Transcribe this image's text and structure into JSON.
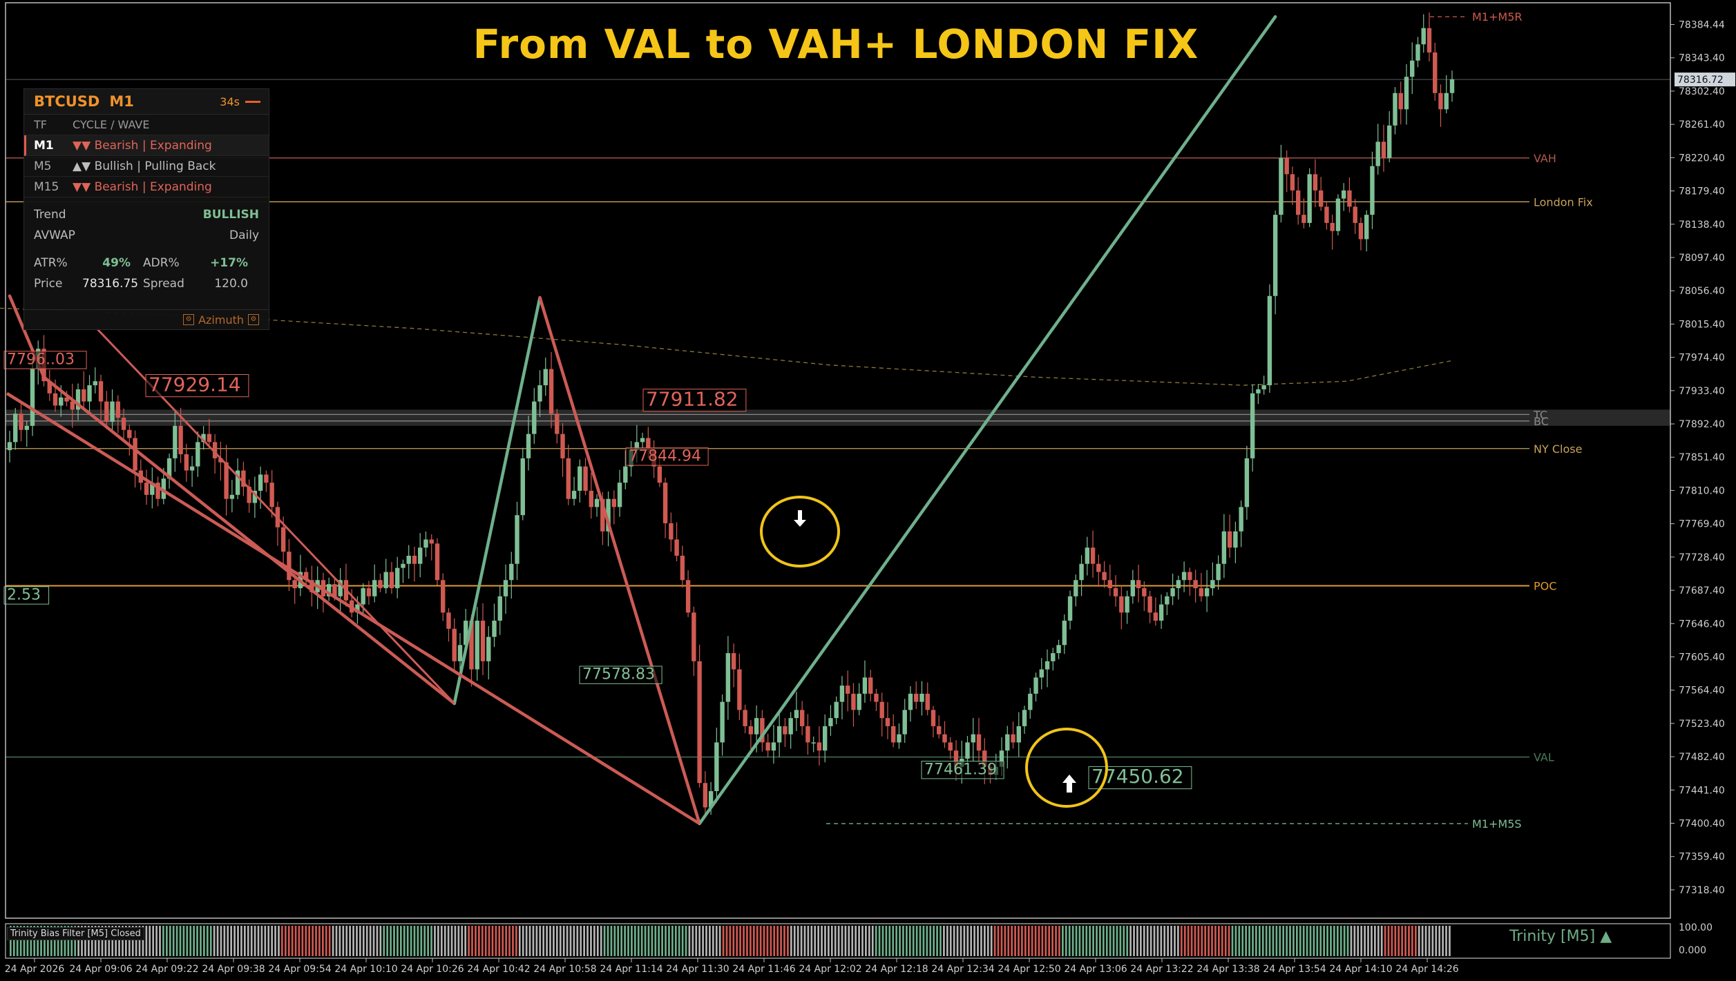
{
  "title": "From VAL to VAH+ LONDON FIX",
  "panel": {
    "symbol": "BTCUSD",
    "timeframe": "M1",
    "timer": "34s",
    "col_tf": "TF",
    "col_cycle": "CYCLE / WAVE",
    "rows": [
      {
        "tf": "M1",
        "arrows": "▼▼",
        "text": "Bearish | Expanding",
        "color": "#e0645a"
      },
      {
        "tf": "M5",
        "arrows": "▲▼",
        "text": "Bullish | Pulling Back",
        "color": "#bdbdbd"
      },
      {
        "tf": "M15",
        "arrows": "▼▼",
        "text": "Bearish | Expanding",
        "color": "#e0645a"
      }
    ],
    "trend_label": "Trend",
    "trend_value": "BULLISH",
    "avwap_label": "AVWAP",
    "avwap_value": "Daily",
    "atr_label": "ATR%",
    "atr_value": "49%",
    "adr_label": "ADR%",
    "adr_value": "+17%",
    "price_label": "Price",
    "price_value": "78316.75",
    "spread_label": "Spread",
    "spread_value": "120.0",
    "footer": "Azimuth"
  },
  "indicator_label": "Trinity Bias Filter [M5] Closed",
  "trinity_label": "Trinity [M5] ▲",
  "chart_data": {
    "type": "candlestick",
    "symbol": "BTCUSD",
    "timeframe": "M1",
    "y_ticks": [
      78384.44,
      78343.4,
      78302.4,
      78261.4,
      78220.4,
      78179.4,
      78138.4,
      78097.4,
      78056.4,
      78015.4,
      77974.4,
      77933.4,
      77892.4,
      77851.4,
      77810.4,
      77769.4,
      77728.4,
      77687.4,
      77646.4,
      77605.4,
      77564.4,
      77523.4,
      77482.4,
      77441.4,
      77400.4,
      77359.4,
      77318.4
    ],
    "current_price_tag": "78316.72",
    "x_ticks": [
      "24 Apr 2026",
      "24 Apr 09:06",
      "24 Apr 09:22",
      "24 Apr 09:38",
      "24 Apr 09:54",
      "24 Apr 10:10",
      "24 Apr 10:26",
      "24 Apr 10:42",
      "24 Apr 10:58",
      "24 Apr 11:14",
      "24 Apr 11:30",
      "24 Apr 11:46",
      "24 Apr 12:02",
      "24 Apr 12:18",
      "24 Apr 12:34",
      "24 Apr 12:50",
      "24 Apr 13:06",
      "24 Apr 13:22",
      "24 Apr 13:38",
      "24 Apr 13:54",
      "24 Apr 14:10",
      "24 Apr 14:26"
    ],
    "levels": [
      {
        "name": "M1+M5R",
        "price": 78394,
        "color": "#d05a4e",
        "style": "dashed"
      },
      {
        "name": "VAH",
        "price": 78220,
        "color": "#b0584f"
      },
      {
        "name": "London Fix",
        "price": 78166,
        "color": "#c9a45a"
      },
      {
        "name": "TC",
        "price": 77904,
        "color": "#888888"
      },
      {
        "name": "BC",
        "price": 77896,
        "color": "#888888"
      },
      {
        "name": "NY Close",
        "price": 77862,
        "color": "#c9a45a"
      },
      {
        "name": "POC",
        "price": 77693,
        "color": "#e39a2e"
      },
      {
        "name": "VAL",
        "price": 77482,
        "color": "#4a7a5e"
      },
      {
        "name": "M1+M5S",
        "price": 77400,
        "color": "#7fbf95",
        "style": "dashed"
      }
    ],
    "labels": [
      {
        "text": "7796..03",
        "price": 77966,
        "color": "#e0645a"
      },
      {
        "text": "77929.14",
        "price": 77933,
        "color": "#e0645a"
      },
      {
        "text": "77911.82",
        "price": 77915,
        "color": "#e0645a"
      },
      {
        "text": "77844.94",
        "price": 77847,
        "color": "#e0645a"
      },
      {
        "text": "77578.83",
        "price": 77578,
        "color": "#7fbf95"
      },
      {
        "text": "77461.39",
        "price": 77461,
        "color": "#7fbf95"
      },
      {
        "text": "77450.62",
        "price": 77450,
        "color": "#7fbf95"
      },
      {
        "text": "2.53",
        "price": 77676,
        "color": "#7fbf95"
      }
    ],
    "zigzag": [
      {
        "i": 0,
        "price": 78050
      },
      {
        "i": 6,
        "price": 77950
      },
      {
        "i": 78,
        "price": 77548
      },
      {
        "i": 93,
        "price": 78048
      },
      {
        "i": 121,
        "price": 77400
      },
      {
        "i": 222,
        "price": 78394
      }
    ],
    "closes": [
      77870,
      77905,
      77885,
      77890,
      77960,
      77985,
      77945,
      77930,
      77915,
      77925,
      77920,
      77910,
      77935,
      77920,
      77940,
      77945,
      77920,
      77895,
      77920,
      77900,
      77885,
      77875,
      77835,
      77820,
      77805,
      77820,
      77800,
      77825,
      77850,
      77890,
      77855,
      77835,
      77840,
      77870,
      77880,
      77870,
      77850,
      77845,
      77800,
      77805,
      77835,
      77815,
      77795,
      77810,
      77830,
      77820,
      77790,
      77765,
      77735,
      77700,
      77690,
      77710,
      77700,
      77685,
      77700,
      77680,
      77695,
      77680,
      77700,
      77675,
      77660,
      77670,
      77690,
      77680,
      77700,
      77690,
      77710,
      77690,
      77715,
      77720,
      77730,
      77720,
      77740,
      77750,
      77745,
      77700,
      77660,
      77640,
      77600,
      77620,
      77650,
      77590,
      77650,
      77600,
      77630,
      77650,
      77680,
      77700,
      77720,
      77780,
      77850,
      77880,
      77920,
      77940,
      77960,
      77905,
      77880,
      77850,
      77800,
      77810,
      77840,
      77810,
      77790,
      77800,
      77760,
      77800,
      77790,
      77820,
      77840,
      77860,
      77870,
      77875,
      77860,
      77840,
      77820,
      77770,
      77750,
      77730,
      77700,
      77660,
      77600,
      77450,
      77420,
      77440,
      77500,
      77550,
      77610,
      77590,
      77540,
      77520,
      77510,
      77530,
      77500,
      77490,
      77500,
      77520,
      77510,
      77530,
      77540,
      77520,
      77500,
      77500,
      77490,
      77520,
      77530,
      77550,
      77570,
      77560,
      77540,
      77560,
      77580,
      77560,
      77550,
      77530,
      77520,
      77500,
      77510,
      77540,
      77560,
      77550,
      77560,
      77540,
      77520,
      77510,
      77500,
      77490,
      77470,
      77480,
      77500,
      77510,
      77490,
      77470,
      77460,
      77470,
      77490,
      77510,
      77500,
      77520,
      77540,
      77560,
      77580,
      77590,
      77600,
      77610,
      77620,
      77650,
      77680,
      77700,
      77720,
      77740,
      77720,
      77710,
      77700,
      77690,
      77680,
      77660,
      77680,
      77700,
      77690,
      77680,
      77660,
      77650,
      77670,
      77680,
      77690,
      77700,
      77710,
      77700,
      77690,
      77680,
      77690,
      77700,
      77720,
      77760,
      77740,
      77760,
      77790,
      77850,
      77930,
      77935,
      77940,
      78050,
      78150,
      78220,
      78200,
      78180,
      78150,
      78140,
      78200,
      78180,
      78160,
      78140,
      78130,
      78170,
      78180,
      78160,
      78140,
      78120,
      78150,
      78210,
      78240,
      78220,
      78260,
      78300,
      78280,
      78320,
      78340,
      78360,
      78380,
      78350,
      78300,
      78280,
      78300,
      78317
    ]
  }
}
